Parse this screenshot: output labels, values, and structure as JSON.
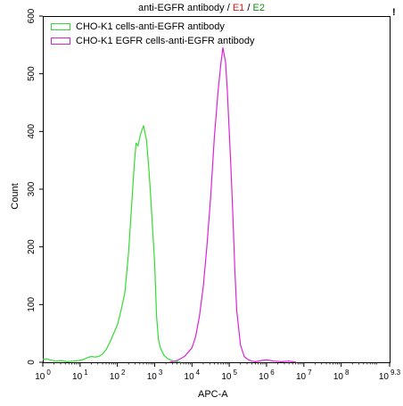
{
  "header": {
    "title_prefix": "anti-EGFR antibody /",
    "title_e1": "E1",
    "title_sep": "/",
    "title_e2": "E2",
    "corner_mark": "!"
  },
  "chart_data": {
    "type": "line",
    "title": "anti-EGFR antibody / E1 / E2",
    "xlabel": "APC-A",
    "ylabel": "Count",
    "x_scale": "log10",
    "xlim_exponent": [
      0,
      9.3
    ],
    "ylim": [
      0,
      600
    ],
    "y_ticks": [
      0,
      100,
      200,
      300,
      400,
      500,
      600
    ],
    "x_ticks": [
      {
        "base": "10",
        "exp": "0"
      },
      {
        "base": "10",
        "exp": "1"
      },
      {
        "base": "10",
        "exp": "2"
      },
      {
        "base": "10",
        "exp": "3"
      },
      {
        "base": "10",
        "exp": "4"
      },
      {
        "base": "10",
        "exp": "5"
      },
      {
        "base": "10",
        "exp": "6"
      },
      {
        "base": "10",
        "exp": "7"
      },
      {
        "base": "10",
        "exp": "8"
      },
      {
        "base": "10",
        "exp": "9.3"
      }
    ],
    "grid": false,
    "legend_position": "top-left",
    "series": [
      {
        "name": "CHO-K1 cells-anti-EGFR antibody",
        "color": "#33dd33",
        "points": [
          [
            0.0,
            5
          ],
          [
            0.1,
            6
          ],
          [
            0.2,
            4
          ],
          [
            0.35,
            2
          ],
          [
            0.5,
            3
          ],
          [
            0.65,
            1
          ],
          [
            0.8,
            2
          ],
          [
            0.95,
            3
          ],
          [
            1.05,
            4
          ],
          [
            1.2,
            8
          ],
          [
            1.3,
            10
          ],
          [
            1.4,
            9
          ],
          [
            1.5,
            10
          ],
          [
            1.6,
            14
          ],
          [
            1.7,
            22
          ],
          [
            1.8,
            35
          ],
          [
            1.9,
            50
          ],
          [
            2.0,
            65
          ],
          [
            2.1,
            90
          ],
          [
            2.2,
            120
          ],
          [
            2.3,
            190
          ],
          [
            2.4,
            290
          ],
          [
            2.45,
            340
          ],
          [
            2.5,
            380
          ],
          [
            2.55,
            375
          ],
          [
            2.62,
            395
          ],
          [
            2.7,
            410
          ],
          [
            2.78,
            385
          ],
          [
            2.85,
            330
          ],
          [
            2.9,
            280
          ],
          [
            3.0,
            170
          ],
          [
            3.05,
            80
          ],
          [
            3.1,
            40
          ],
          [
            3.15,
            25
          ],
          [
            3.25,
            12
          ],
          [
            3.35,
            6
          ],
          [
            3.5,
            2
          ],
          [
            3.7,
            0
          ]
        ]
      },
      {
        "name": "CHO-K1 EGFR  cells-anti-EGFR antibody",
        "color": "#dd22dd",
        "points": [
          [
            3.4,
            0
          ],
          [
            3.6,
            3
          ],
          [
            3.8,
            10
          ],
          [
            4.0,
            25
          ],
          [
            4.1,
            45
          ],
          [
            4.2,
            80
          ],
          [
            4.3,
            130
          ],
          [
            4.4,
            200
          ],
          [
            4.5,
            285
          ],
          [
            4.6,
            390
          ],
          [
            4.7,
            470
          ],
          [
            4.78,
            520
          ],
          [
            4.83,
            545
          ],
          [
            4.9,
            520
          ],
          [
            4.95,
            470
          ],
          [
            5.0,
            400
          ],
          [
            5.05,
            330
          ],
          [
            5.1,
            250
          ],
          [
            5.15,
            160
          ],
          [
            5.2,
            90
          ],
          [
            5.3,
            30
          ],
          [
            5.4,
            10
          ],
          [
            5.5,
            5
          ],
          [
            5.6,
            2
          ],
          [
            5.7,
            1
          ],
          [
            5.85,
            3
          ],
          [
            6.0,
            4
          ],
          [
            6.2,
            2
          ],
          [
            6.4,
            1
          ],
          [
            6.6,
            2
          ],
          [
            6.8,
            0
          ]
        ]
      }
    ]
  }
}
